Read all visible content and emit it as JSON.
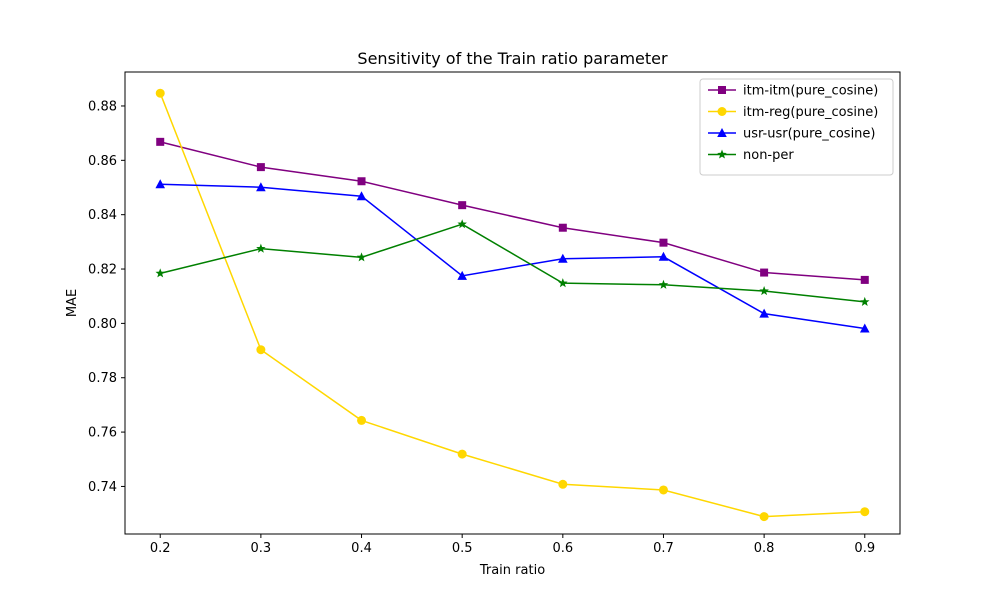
{
  "chart_data": {
    "type": "line",
    "title": "Sensitivity of the Train ratio parameter",
    "xlabel": "Train ratio",
    "ylabel": "MAE",
    "x": [
      0.2,
      0.3,
      0.4,
      0.5,
      0.6,
      0.7,
      0.8,
      0.9
    ],
    "x_tick_labels": [
      "0.2",
      "0.3",
      "0.4",
      "0.5",
      "0.6",
      "0.7",
      "0.8",
      "0.9"
    ],
    "xlim": [
      0.165,
      0.935
    ],
    "ylim": [
      0.7225,
      0.8925
    ],
    "y_ticks": [
      0.74,
      0.76,
      0.78,
      0.8,
      0.82,
      0.84,
      0.86,
      0.88
    ],
    "y_tick_labels": [
      "0.74",
      "0.76",
      "0.78",
      "0.80",
      "0.82",
      "0.84",
      "0.86",
      "0.88"
    ],
    "grid": false,
    "legend_position": "top-right",
    "series": [
      {
        "name": "itm-itm(pure_cosine)",
        "color": "#800080",
        "marker": "square",
        "values": [
          0.8668,
          0.8575,
          0.8523,
          0.8435,
          0.8352,
          0.8297,
          0.8187,
          0.816
        ]
      },
      {
        "name": "itm-reg(pure_cosine)",
        "color": "#FFD700",
        "marker": "circle",
        "values": [
          0.8847,
          0.7903,
          0.7643,
          0.7519,
          0.7408,
          0.7387,
          0.7289,
          0.7307
        ]
      },
      {
        "name": "usr-usr(pure_cosine)",
        "color": "#0000FF",
        "marker": "triangle",
        "values": [
          0.8512,
          0.8501,
          0.8468,
          0.8175,
          0.8238,
          0.8245,
          0.8036,
          0.7981
        ]
      },
      {
        "name": "non-per",
        "color": "#008000",
        "marker": "star",
        "values": [
          0.8184,
          0.8275,
          0.8243,
          0.8365,
          0.8148,
          0.8142,
          0.8119,
          0.8079
        ]
      }
    ]
  }
}
